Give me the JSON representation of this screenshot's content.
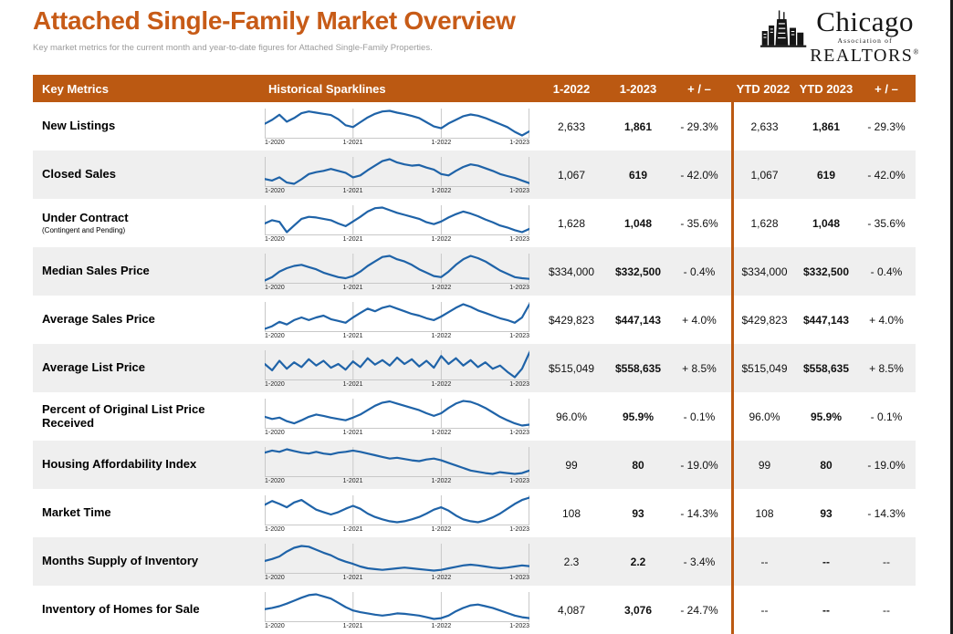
{
  "page": {
    "title": "Attached Single-Family Market Overview",
    "subtitle": "Key market metrics for the current month and year-to-date figures for Attached Single-Family Properties.",
    "logo": {
      "line1": "Chicago",
      "line2": "Association of",
      "line3": "REALTORS",
      "registered": "®"
    }
  },
  "colors": {
    "accent": "#BB5912",
    "title": "#C75B17",
    "spark_line": "#1F63A8",
    "row_alt": "#EFEFEF",
    "grid_line": "#c8c8c8"
  },
  "chart_data": {
    "type": "table",
    "title": "Attached Single-Family Market Overview",
    "columns": [
      "Key Metrics",
      "Historical Sparklines",
      "1-2022",
      "1-2023",
      "+ / –",
      "YTD 2022",
      "YTD 2023",
      "+ / –"
    ],
    "sparkline_x_labels": [
      "1-2020",
      "1-2021",
      "1-2022",
      "1-2023"
    ],
    "sparkline_note": "sparkline values are approximate relative levels (0-100) read from the chart shapes, monthly from 1-2020 to 1-2023",
    "rows": [
      {
        "metric": "New Listings",
        "note": "",
        "m_2022": "2,633",
        "m_2023": "1,861",
        "m_change": "- 29.3%",
        "ytd_2022": "2,633",
        "ytd_2023": "1,861",
        "ytd_change": "- 29.3%",
        "spark": [
          55,
          68,
          85,
          62,
          74,
          90,
          96,
          92,
          88,
          84,
          70,
          50,
          44,
          60,
          76,
          88,
          96,
          98,
          92,
          87,
          81,
          74,
          60,
          46,
          40,
          56,
          68,
          80,
          86,
          82,
          74,
          64,
          54,
          44,
          28,
          16,
          30
        ]
      },
      {
        "metric": "Closed Sales",
        "note": "",
        "m_2022": "1,067",
        "m_2023": "619",
        "m_change": "- 42.0%",
        "ytd_2022": "1,067",
        "ytd_2023": "619",
        "ytd_change": "- 42.0%",
        "spark": [
          35,
          30,
          40,
          24,
          20,
          34,
          50,
          56,
          60,
          66,
          60,
          54,
          40,
          46,
          62,
          76,
          90,
          96,
          86,
          80,
          76,
          78,
          70,
          64,
          50,
          46,
          60,
          72,
          80,
          76,
          68,
          60,
          50,
          44,
          38,
          30,
          22
        ]
      },
      {
        "metric": "Under Contract",
        "note": "(Contingent and Pending)",
        "m_2022": "1,628",
        "m_2023": "1,048",
        "m_change": "- 35.6%",
        "ytd_2022": "1,628",
        "ytd_2023": "1,048",
        "ytd_change": "- 35.6%",
        "spark": [
          50,
          60,
          55,
          24,
          44,
          64,
          70,
          68,
          64,
          60,
          50,
          42,
          56,
          70,
          86,
          96,
          98,
          90,
          82,
          76,
          70,
          64,
          54,
          48,
          56,
          68,
          78,
          86,
          80,
          72,
          62,
          54,
          44,
          38,
          30,
          24,
          34
        ]
      },
      {
        "metric": "Median Sales Price",
        "note": "",
        "m_2022": "$334,000",
        "m_2023": "$332,500",
        "m_change": "- 0.4%",
        "ytd_2022": "$334,000",
        "ytd_2023": "$332,500",
        "ytd_change": "- 0.4%",
        "spark": [
          44,
          50,
          60,
          66,
          70,
          72,
          68,
          64,
          58,
          54,
          50,
          48,
          52,
          60,
          70,
          78,
          86,
          88,
          82,
          78,
          72,
          64,
          58,
          52,
          50,
          60,
          72,
          82,
          88,
          84,
          78,
          70,
          62,
          56,
          50,
          48,
          47
        ]
      },
      {
        "metric": "Average Sales Price",
        "note": "",
        "m_2022": "$429,823",
        "m_2023": "$447,143",
        "m_change": "+ 4.0%",
        "ytd_2022": "$429,823",
        "ytd_2023": "$447,143",
        "ytd_change": "+ 4.0%",
        "spark": [
          30,
          36,
          46,
          40,
          50,
          56,
          50,
          56,
          60,
          52,
          48,
          44,
          56,
          66,
          76,
          70,
          78,
          82,
          76,
          70,
          64,
          60,
          54,
          50,
          58,
          68,
          78,
          86,
          80,
          72,
          66,
          60,
          54,
          50,
          44,
          56,
          86
        ]
      },
      {
        "metric": "Average List Price",
        "note": "",
        "m_2022": "$515,049",
        "m_2023": "$558,635",
        "m_change": "+ 8.5%",
        "ytd_2022": "$515,049",
        "ytd_2023": "$558,635",
        "ytd_change": "+ 8.5%",
        "spark": [
          60,
          40,
          70,
          45,
          65,
          50,
          75,
          55,
          70,
          48,
          60,
          42,
          68,
          50,
          78,
          58,
          72,
          55,
          80,
          60,
          75,
          52,
          70,
          48,
          85,
          60,
          78,
          55,
          72,
          50,
          65,
          45,
          55,
          35,
          18,
          45,
          96
        ]
      },
      {
        "metric": "Percent of Original List Price Received",
        "note": "",
        "m_2022": "96.0%",
        "m_2023": "95.9%",
        "m_change": "- 0.1%",
        "ytd_2022": "96.0%",
        "ytd_2023": "95.9%",
        "ytd_change": "- 0.1%",
        "spark": [
          50,
          45,
          48,
          40,
          35,
          42,
          50,
          55,
          52,
          48,
          45,
          42,
          48,
          55,
          65,
          75,
          82,
          85,
          80,
          75,
          70,
          65,
          58,
          52,
          58,
          70,
          80,
          86,
          84,
          78,
          70,
          60,
          50,
          42,
          35,
          30,
          32
        ]
      },
      {
        "metric": "Housing Affordability Index",
        "note": "",
        "m_2022": "99",
        "m_2023": "80",
        "m_change": "- 19.0%",
        "ytd_2022": "99",
        "ytd_2023": "80",
        "ytd_change": "- 19.0%",
        "spark": [
          70,
          75,
          72,
          78,
          74,
          70,
          68,
          72,
          68,
          66,
          70,
          72,
          75,
          72,
          68,
          64,
          60,
          56,
          58,
          55,
          52,
          50,
          54,
          56,
          52,
          46,
          40,
          34,
          28,
          25,
          22,
          20,
          24,
          22,
          20,
          22,
          28
        ]
      },
      {
        "metric": "Market Time",
        "note": "",
        "m_2022": "108",
        "m_2023": "93",
        "m_change": "- 14.3%",
        "ytd_2022": "108",
        "ytd_2023": "93",
        "ytd_change": "- 14.3%",
        "spark": [
          60,
          68,
          62,
          55,
          65,
          70,
          60,
          50,
          45,
          40,
          45,
          52,
          58,
          52,
          42,
          35,
          30,
          26,
          24,
          26,
          30,
          35,
          42,
          50,
          55,
          48,
          38,
          30,
          26,
          24,
          28,
          34,
          42,
          52,
          62,
          70,
          75
        ]
      },
      {
        "metric": "Months Supply of Inventory",
        "note": "",
        "m_2022": "2.3",
        "m_2023": "2.2",
        "m_change": "- 3.4%",
        "ytd_2022": "--",
        "ytd_2023": "--",
        "ytd_change": "--",
        "spark": [
          50,
          55,
          62,
          75,
          85,
          90,
          88,
          80,
          72,
          65,
          55,
          48,
          42,
          35,
          30,
          28,
          26,
          28,
          30,
          32,
          30,
          28,
          26,
          24,
          26,
          30,
          34,
          38,
          40,
          38,
          35,
          32,
          30,
          32,
          35,
          38,
          36
        ]
      },
      {
        "metric": "Inventory of Homes for Sale",
        "note": "",
        "m_2022": "4,087",
        "m_2023": "3,076",
        "m_change": "- 24.7%",
        "ytd_2022": "--",
        "ytd_2023": "--",
        "ytd_change": "--",
        "spark": [
          55,
          58,
          62,
          68,
          75,
          82,
          88,
          90,
          85,
          80,
          70,
          60,
          52,
          48,
          45,
          42,
          40,
          42,
          45,
          44,
          42,
          40,
          36,
          32,
          34,
          40,
          50,
          58,
          64,
          66,
          62,
          58,
          52,
          46,
          40,
          36,
          34
        ]
      }
    ]
  }
}
